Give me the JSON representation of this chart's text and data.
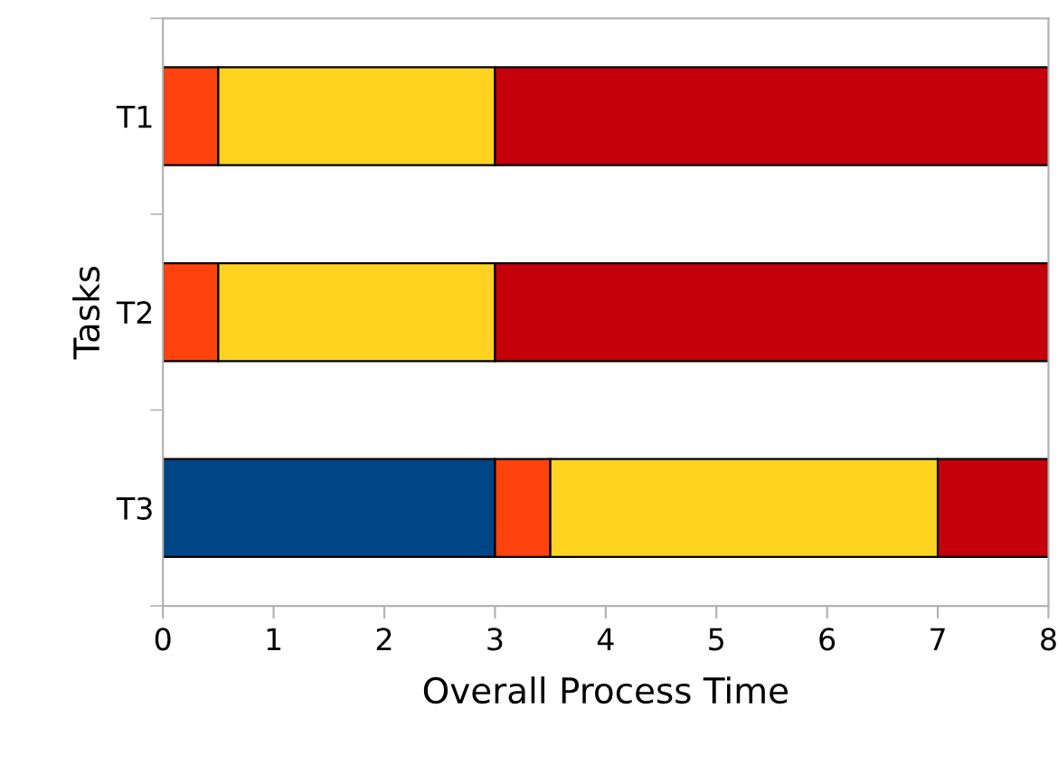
{
  "chart_data": {
    "type": "bar",
    "orientation": "horizontal",
    "stacked": true,
    "ylabel": "Tasks",
    "xlabel": "Overall Process Time",
    "categories": [
      "T1",
      "T2",
      "T3"
    ],
    "series": [
      {
        "color": "#004586",
        "values": [
          null,
          null,
          3
        ]
      },
      {
        "color": "#ff420e",
        "values": [
          0.5,
          0.5,
          0.5
        ]
      },
      {
        "color": "#ffd320",
        "values": [
          2.5,
          2.5,
          3.5
        ]
      },
      {
        "color": "#c5000b",
        "values": [
          5,
          5,
          1
        ]
      }
    ],
    "xlim": [
      0,
      8
    ],
    "xticks": [
      0,
      1,
      2,
      3,
      4,
      5,
      6,
      7,
      8
    ],
    "grid": false,
    "legend": false
  }
}
